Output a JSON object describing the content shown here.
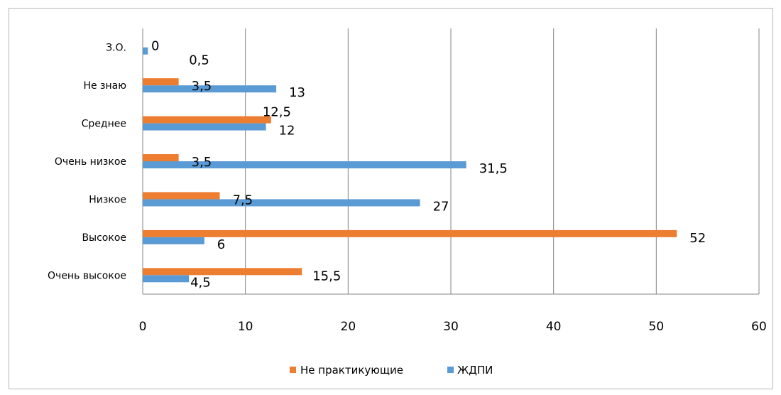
{
  "chart_data": {
    "type": "bar",
    "orientation": "horizontal",
    "categories": [
      "Очень высокое",
      "Высокое",
      "Низкое",
      "Очень низкое",
      "Среднее",
      "Не знаю",
      "З.О."
    ],
    "series": [
      {
        "name": "Не практикующие",
        "color": "#ED7D31",
        "values": [
          15.5,
          52,
          7.5,
          3.5,
          12.5,
          3.5,
          0
        ]
      },
      {
        "name": "ЖДПИ",
        "color": "#5B9BD5",
        "values": [
          4.5,
          6,
          27,
          31.5,
          12,
          13,
          0.5
        ]
      }
    ],
    "xlim": [
      0,
      60
    ],
    "xticks": [
      "0",
      "10",
      "20",
      "30",
      "40",
      "50",
      "60"
    ],
    "grid": true,
    "legend_position": "bottom",
    "data_labels": {
      "orange": [
        "15,5",
        "52",
        "7,5",
        "3,5",
        "12,5",
        "3,5",
        "0"
      ],
      "blue": [
        "4,5",
        "6",
        "27",
        "31,5",
        "12",
        "13",
        "0,5"
      ]
    }
  }
}
